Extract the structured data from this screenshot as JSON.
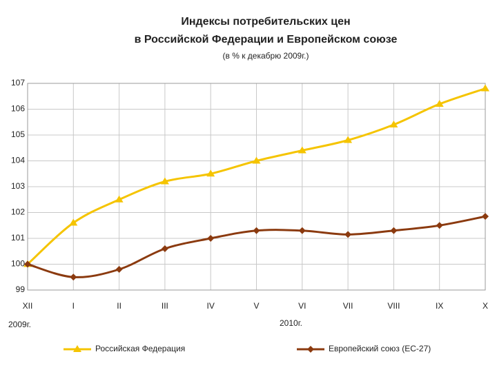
{
  "chart_data": {
    "type": "line",
    "title": [
      "Индексы потребительских цен",
      "в Российской Федерации и Европейском союзе"
    ],
    "subtitle": "(в % к декабрю 2009г.)",
    "categories": [
      "XII",
      "I",
      "II",
      "III",
      "IV",
      "V",
      "VI",
      "VII",
      "VIII",
      "IX",
      "X"
    ],
    "annotations": [
      "2009г.",
      "2010г."
    ],
    "series": [
      {
        "name": "Российская Федерация",
        "color": "#f5c400",
        "marker": "triangle",
        "values": [
          100,
          101.6,
          102.5,
          103.2,
          103.5,
          104.0,
          104.4,
          104.8,
          105.4,
          106.2,
          106.8
        ]
      },
      {
        "name": "Европейский союз (ЕС-27)",
        "color": "#8b3a0f",
        "marker": "diamond",
        "values": [
          100,
          99.5,
          99.8,
          100.6,
          101.0,
          101.3,
          101.3,
          101.15,
          101.3,
          101.5,
          101.85
        ]
      }
    ],
    "ylim": [
      99,
      107
    ],
    "yticks": [
      99,
      100,
      101,
      102,
      103,
      104,
      105,
      106,
      107
    ],
    "grid": true,
    "legend": "bottom"
  }
}
